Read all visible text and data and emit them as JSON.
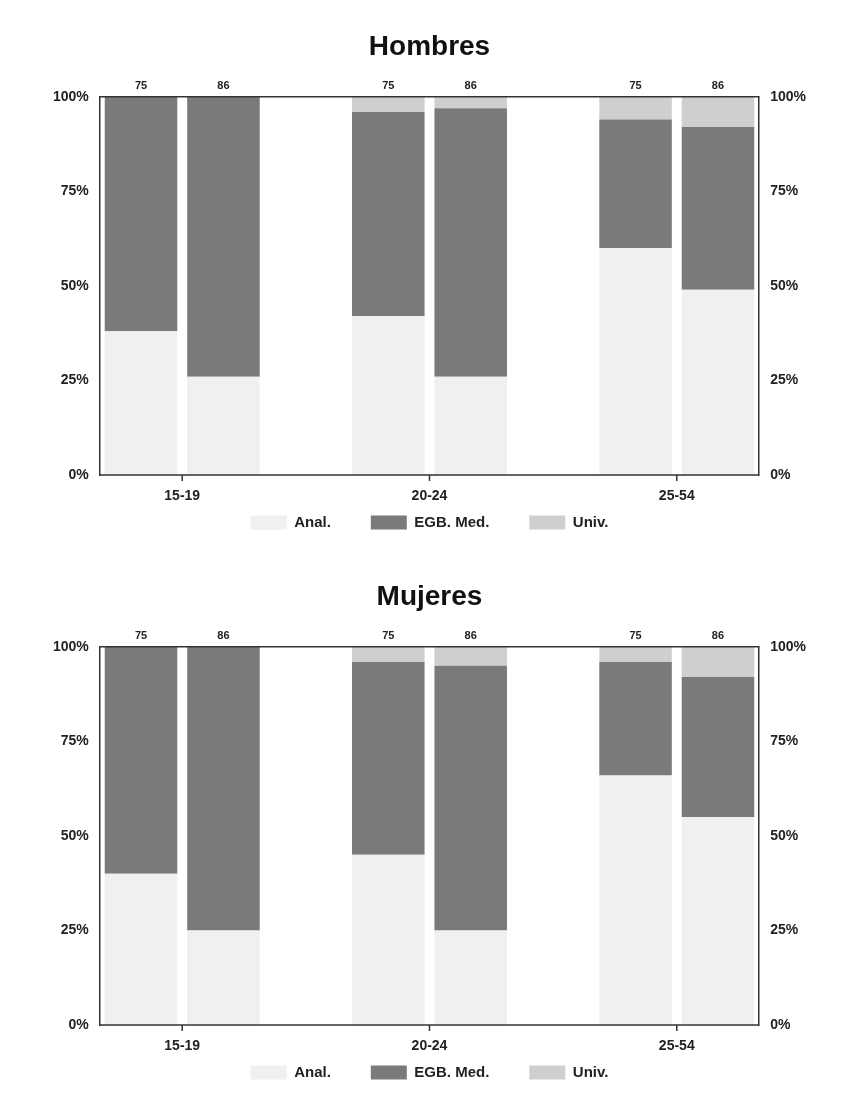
{
  "chart_data": [
    {
      "type": "bar",
      "title": "Hombres",
      "stacked": true,
      "categories": [
        "75",
        "86",
        null,
        "75",
        "86",
        null,
        "75",
        "86"
      ],
      "series": [
        {
          "name": "Anal.",
          "color": "#f0f0f0",
          "values": [
            38,
            26,
            null,
            42,
            26,
            null,
            60,
            49
          ]
        },
        {
          "name": "EGB. Med.",
          "color": "#7a7a7a",
          "values": [
            62,
            74,
            null,
            54,
            71,
            null,
            34,
            43
          ]
        },
        {
          "name": "Univ.",
          "color": "#cfcfcf",
          "values": [
            0,
            0,
            null,
            4,
            3,
            null,
            6,
            8
          ]
        }
      ],
      "ylim": [
        0,
        100
      ],
      "yticks": [
        {
          "value": 0,
          "label": "0%"
        },
        {
          "value": 25,
          "label": "25%"
        },
        {
          "value": 50,
          "label": "50%"
        },
        {
          "value": 75,
          "label": "75%"
        },
        {
          "value": 100,
          "label": "100%"
        }
      ],
      "y2lim": [
        0,
        100
      ],
      "y2ticks": [
        {
          "value": 0,
          "label": "0%"
        },
        {
          "value": 25,
          "label": "25%"
        },
        {
          "value": 50,
          "label": "50%"
        },
        {
          "value": 75,
          "label": "75%"
        },
        {
          "value": 100,
          "label": "100%"
        }
      ],
      "annotations": [
        "15-19",
        "20-24",
        "25-54"
      ],
      "grid": false,
      "legend": "bottom"
    },
    {
      "type": "bar",
      "title": "Mujeres",
      "stacked": true,
      "categories": [
        "75",
        "86",
        null,
        "75",
        "86",
        null,
        "75",
        "86"
      ],
      "series": [
        {
          "name": "Anal.",
          "color": "#f0f0f0",
          "values": [
            40,
            25,
            null,
            45,
            25,
            null,
            66,
            55
          ]
        },
        {
          "name": "EGB. Med.",
          "color": "#7a7a7a",
          "values": [
            60,
            75,
            null,
            51,
            70,
            null,
            30,
            37
          ]
        },
        {
          "name": "Univ.",
          "color": "#cfcfcf",
          "values": [
            0,
            0,
            null,
            4,
            5,
            null,
            4,
            8
          ]
        }
      ],
      "ylim": [
        0,
        100
      ],
      "yticks": [
        {
          "value": 0,
          "label": "0%"
        },
        {
          "value": 25,
          "label": "25%"
        },
        {
          "value": 50,
          "label": "50%"
        },
        {
          "value": 75,
          "label": "75%"
        },
        {
          "value": 100,
          "label": "100%"
        }
      ],
      "y2lim": [
        0,
        100
      ],
      "y2ticks": [
        {
          "value": 0,
          "label": "0%"
        },
        {
          "value": 25,
          "label": "25%"
        },
        {
          "value": 50,
          "label": "50%"
        },
        {
          "value": 75,
          "label": "75%"
        },
        {
          "value": 100,
          "label": "100%"
        }
      ],
      "annotations": [
        "15-19",
        "20-24",
        "25-54"
      ],
      "grid": false,
      "legend": "bottom"
    }
  ]
}
